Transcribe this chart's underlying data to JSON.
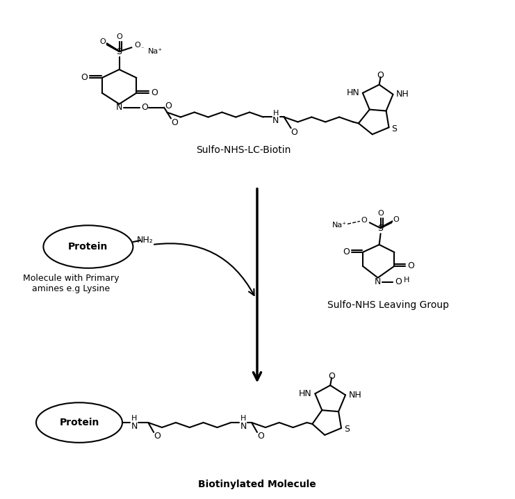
{
  "title": "",
  "background_color": "#ffffff",
  "label_sulfo_biotin": "Sulfo-NHS-LC-Biotin",
  "label_sulfo_nhs": "Sulfo-NHS Leaving Group",
  "label_biotinylated": "Biotinylated Molecule",
  "label_protein": "Protein",
  "label_molecule": "Molecule with Primary\namines e.g Lysine",
  "figsize": [
    7.41,
    7.18
  ],
  "dpi": 100
}
